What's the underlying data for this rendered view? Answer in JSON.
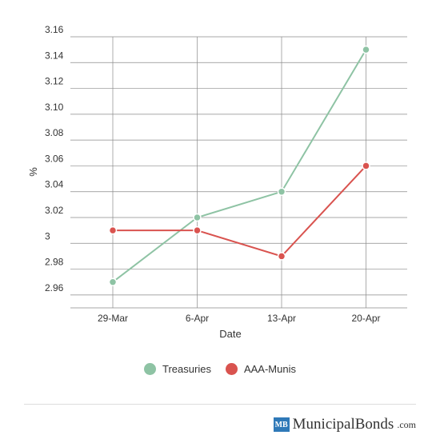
{
  "chart_data": {
    "type": "line",
    "xlabel": "Date",
    "ylabel": "%",
    "categories": [
      "29-Mar",
      "6-Apr",
      "13-Apr",
      "20-Apr"
    ],
    "ylim": [
      2.95,
      3.16
    ],
    "yticks": [
      2.96,
      2.98,
      3,
      3.02,
      3.04,
      3.06,
      3.08,
      3.1,
      3.12,
      3.14,
      3.16
    ],
    "ytick_labels": [
      "2.96",
      "2.98",
      "3",
      "3.02",
      "3.04",
      "3.06",
      "3.08",
      "3.10",
      "3.12",
      "3.14",
      "3.16"
    ],
    "grid": true,
    "legend_position": "bottom",
    "series": [
      {
        "name": "Treasuries",
        "color": "#8ec3a4",
        "values": [
          2.97,
          3.02,
          3.04,
          3.15
        ]
      },
      {
        "name": "AAA-Munis",
        "color": "#d9534f",
        "values": [
          3.01,
          3.01,
          2.99,
          3.06
        ]
      }
    ]
  },
  "brand": {
    "badge": "MB",
    "name": "MunicipalBonds",
    "tld": ".com"
  }
}
